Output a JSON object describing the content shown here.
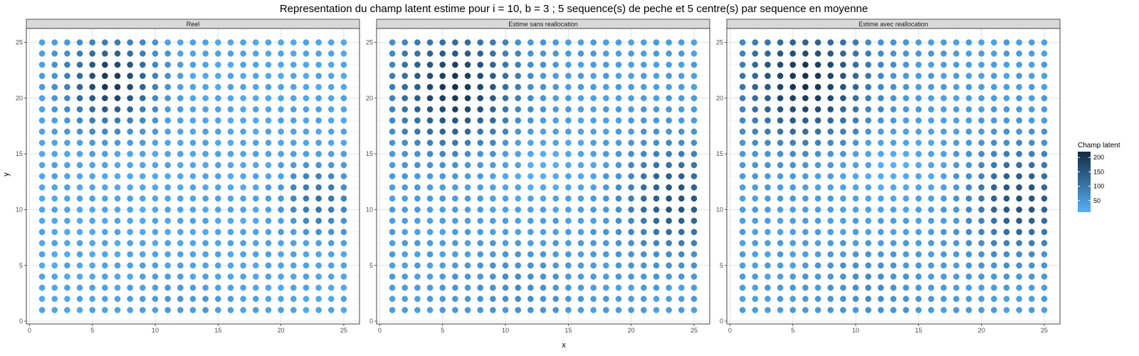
{
  "chart_data": {
    "type": "scatter",
    "title": "Representation du champ latent estime pour i = 10, b = 3 ; 5 sequence(s) de peche et 5 centre(s) par sequence en moyenne",
    "xlabel": "x",
    "ylabel": "y",
    "xlim": [
      -0.25,
      26.25
    ],
    "ylim": [
      -0.25,
      26.25
    ],
    "x_ticks": [
      0,
      5,
      10,
      15,
      20,
      25
    ],
    "y_ticks": [
      0,
      5,
      10,
      15,
      20,
      25
    ],
    "grid": true,
    "grid_x": {
      "from": 1,
      "to": 25,
      "step": 1
    },
    "grid_y": {
      "from": 1,
      "to": 25,
      "step": 1
    },
    "color_scale": {
      "low_color": "#56B1F7",
      "high_color": "#132B43",
      "min": 10,
      "max": 220,
      "legend_title": "Champ latent",
      "legend_breaks": [
        50,
        100,
        150,
        200
      ],
      "legend_placement": "right"
    },
    "panels": [
      {
        "name": "Reel",
        "field": "reel"
      },
      {
        "name": "Estime sans reallocation",
        "field": "sans"
      },
      {
        "name": "Estime avec reallocation",
        "field": "avec"
      }
    ]
  }
}
